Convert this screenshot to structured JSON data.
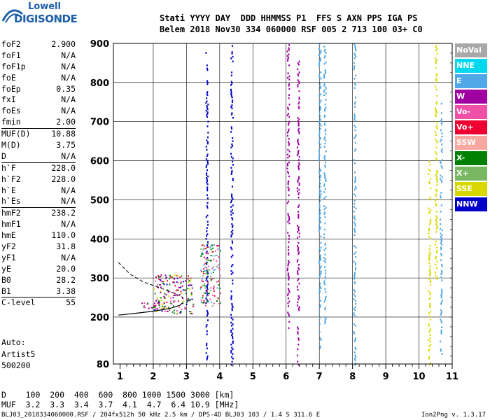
{
  "logo": {
    "line1": "Lowell",
    "line2": "DIGISONDE"
  },
  "header": {
    "line1": "Stati YYYY DAY  DDD HHMMSS P1  FFS S AXN PPS IGA PS",
    "line2": "Belem 2018 Nov30 334 060000 RSF 005 2 713 100 03+ C0"
  },
  "parameters": [
    {
      "label": "foF2",
      "value": "2.900"
    },
    {
      "label": "foF1",
      "value": "N/A"
    },
    {
      "label": "foF1p",
      "value": "N/A"
    },
    {
      "label": "foE",
      "value": "N/A"
    },
    {
      "label": "foEp",
      "value": "0.35"
    },
    {
      "label": "fxI",
      "value": "N/A"
    },
    {
      "label": "foEs",
      "value": "N/A"
    },
    {
      "label": "fmin",
      "value": "2.00"
    },
    {
      "label": "MUF(D)",
      "value": "10.88"
    },
    {
      "label": "M(D)",
      "value": "3.75"
    },
    {
      "label": "D",
      "value": "N/A"
    },
    {
      "label": "h`F",
      "value": "228.0"
    },
    {
      "label": "h`F2",
      "value": "228.0"
    },
    {
      "label": "h`E",
      "value": "N/A"
    },
    {
      "label": "h`Es",
      "value": "N/A"
    },
    {
      "label": "hmF2",
      "value": "238.2"
    },
    {
      "label": "hmF1",
      "value": "N/A"
    },
    {
      "label": "hmE",
      "value": "110.0"
    },
    {
      "label": "yF2",
      "value": "31.8"
    },
    {
      "label": "yF1",
      "value": "N/A"
    },
    {
      "label": "yE",
      "value": "20.0"
    },
    {
      "label": "B0",
      "value": "28.2"
    },
    {
      "label": "B1",
      "value": "3.38"
    },
    {
      "label": "C-level",
      "value": "55"
    }
  ],
  "auto": {
    "line1": "Auto:",
    "line2": "Artist5",
    "line3": "500200"
  },
  "dmuf": {
    "d_line": "D    100  200  400  600  800 1000 1500 3000 [km]",
    "muf_line": "MUF  3.2  3.3  3.4  3.7  4.1  4.7  6.4 10.9 [MHz]"
  },
  "footer": {
    "text": "BLJ03_2018334060000.RSF / 204fx512h 50 kHz 2.5 km / DPS-4D BLJ03 103 / 1.4 S 311.6 E",
    "version": "Ion2Png v. 1.3.17"
  },
  "legend": [
    {
      "label": "NoVal",
      "color": "#a8a8a8"
    },
    {
      "label": "NNE",
      "color": "#00d8f0"
    },
    {
      "label": "E",
      "color": "#50a8e8"
    },
    {
      "label": "W",
      "color": "#a000a0"
    },
    {
      "label": "Vo-",
      "color": "#f050a8"
    },
    {
      "label": "Vo+",
      "color": "#f00030"
    },
    {
      "label": "SSW",
      "color": "#f8a8a0"
    },
    {
      "label": "X-",
      "color": "#008000"
    },
    {
      "label": "X+",
      "color": "#78b860"
    },
    {
      "label": "SSE",
      "color": "#d8d800"
    },
    {
      "label": "NNW",
      "color": "#0000c8"
    }
  ],
  "chart_data": {
    "type": "scatter",
    "x_ticks": [
      "1",
      "2",
      "3",
      "4",
      "5",
      "6",
      "7",
      "8",
      "9",
      "10",
      "11"
    ],
    "y_ticks": [
      "900",
      "800",
      "700",
      "600",
      "500",
      "400",
      "300",
      "200",
      "80"
    ],
    "xlim": [
      0.8,
      11.0
    ],
    "ylim": [
      80,
      900
    ],
    "vertical_traces": [
      {
        "x": 6.05,
        "y_from": 170,
        "y_to": 900,
        "color": "#a000a0"
      },
      {
        "x": 6.35,
        "y_from": 80,
        "y_to": 860,
        "color": "#a000a0"
      },
      {
        "x": 7.0,
        "y_from": 120,
        "y_to": 900,
        "color": "#50a8e8"
      },
      {
        "x": 7.15,
        "y_from": 150,
        "y_to": 900,
        "color": "#50a8e8"
      },
      {
        "x": 8.05,
        "y_from": 80,
        "y_to": 900,
        "color": "#50a8e8"
      },
      {
        "x": 4.35,
        "y_from": 80,
        "y_to": 900,
        "color": "#0000c8"
      },
      {
        "x": 3.6,
        "y_from": 90,
        "y_to": 880,
        "color": "#0000c8"
      },
      {
        "x": 10.3,
        "y_from": 80,
        "y_to": 600,
        "color": "#d8d800"
      },
      {
        "x": 10.5,
        "y_from": 300,
        "y_to": 900,
        "color": "#d8d800"
      },
      {
        "x": 10.65,
        "y_from": 100,
        "y_to": 750,
        "color": "#50a8e8"
      }
    ],
    "profile_curve": [
      [
        0.95,
        205
      ],
      [
        1.5,
        210
      ],
      [
        2.0,
        215
      ],
      [
        2.5,
        222
      ],
      [
        2.8,
        230
      ],
      [
        2.9,
        238
      ]
    ],
    "dashed_curve": [
      [
        0.95,
        340
      ],
      [
        1.3,
        310
      ],
      [
        1.7,
        290
      ],
      [
        2.2,
        275
      ],
      [
        2.6,
        262
      ],
      [
        2.9,
        250
      ]
    ],
    "clusters": [
      {
        "x": 2.6,
        "y": 260,
        "spread_x": 0.6,
        "spread_y": 50,
        "colors": [
          "#f050a8",
          "#f00030",
          "#008000",
          "#a000a0",
          "#d8d800",
          "#0000c8"
        ]
      },
      {
        "x": 3.7,
        "y": 310,
        "spread_x": 0.3,
        "spread_y": 80,
        "colors": [
          "#50a8e8",
          "#f00030",
          "#f050a8",
          "#008000",
          "#78b860"
        ]
      },
      {
        "x": 1.9,
        "y": 232,
        "spread_x": 0.35,
        "spread_y": 8,
        "colors": [
          "#f050a8",
          "#a000a0",
          "#008000"
        ]
      }
    ]
  }
}
